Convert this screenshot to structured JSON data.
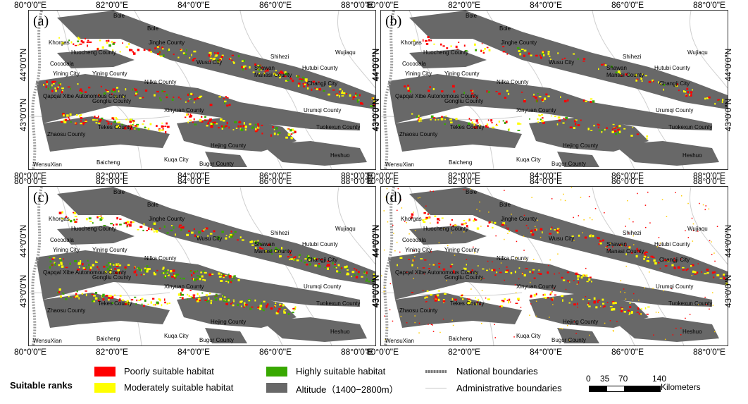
{
  "panels": [
    {
      "label": "(a)",
      "density": 0.9
    },
    {
      "label": "(b)",
      "density": 0.5
    },
    {
      "label": "(c)",
      "density": 1.0
    },
    {
      "label": "(d)",
      "density": 0.6
    }
  ],
  "x_ticks": [
    "80°0'0\"E",
    "82°0'0\"E",
    "84°0'0\"E",
    "86°0'0\"E",
    "88°0'0\"E"
  ],
  "y_ticks": [
    "44°0'0\"N",
    "43°0'0\"N"
  ],
  "places": [
    {
      "name": "Bole"
    },
    {
      "name": "Bole"
    },
    {
      "name": "Khorgas"
    },
    {
      "name": "Jinghe County"
    },
    {
      "name": "Huocheng County"
    },
    {
      "name": "Wusu City"
    },
    {
      "name": "Shihezi"
    },
    {
      "name": "Wujiaqu"
    },
    {
      "name": "Cocodala"
    },
    {
      "name": "Shawan"
    },
    {
      "name": "Manasi County"
    },
    {
      "name": "Hutubi County"
    },
    {
      "name": "Yining City"
    },
    {
      "name": "Yining County"
    },
    {
      "name": "Nilka County"
    },
    {
      "name": "Changji City"
    },
    {
      "name": "Qapqal Xibe Autonomous County"
    },
    {
      "name": "Gongliu County"
    },
    {
      "name": "Urumqi County"
    },
    {
      "name": "Xinyuan County"
    },
    {
      "name": "Tuokexun County"
    },
    {
      "name": "Zhaosu County"
    },
    {
      "name": "Tekes County"
    },
    {
      "name": "Hejing County"
    },
    {
      "name": "WensuXian"
    },
    {
      "name": "Baicheng"
    },
    {
      "name": "Kuqa City"
    },
    {
      "name": "Bugur County"
    },
    {
      "name": "Heshuo"
    }
  ],
  "legend": {
    "title": "Suitable ranks",
    "items": [
      {
        "label": "Poorly suitable habitat",
        "color": "#ff0000"
      },
      {
        "label": "Moderately suitable habitat",
        "color": "#ffff00"
      },
      {
        "label": "Highly suitable habitat",
        "color": "#38a800"
      },
      {
        "label": "Altitude（1400−2800m）",
        "color": "#686868"
      },
      {
        "label": "National boundaries",
        "color": "#888888"
      },
      {
        "label": "Administrative boundaries",
        "color": "#c8c8c8"
      }
    ]
  },
  "scale": {
    "ticks": [
      "0",
      "35",
      "70",
      "140"
    ],
    "unit": "Kilometers"
  }
}
